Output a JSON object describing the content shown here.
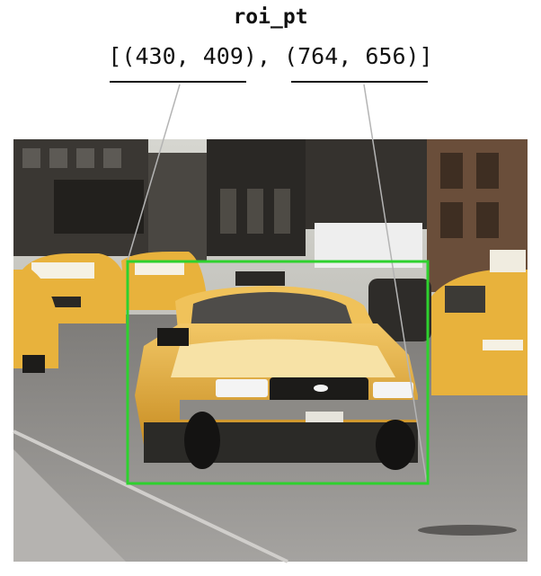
{
  "title": "roi_pt",
  "coordinates_text": "[(430, 409), (764, 656)]",
  "roi": {
    "top_left": [
      430,
      409
    ],
    "bottom_right": [
      764,
      656
    ],
    "box_color": "#2ed12e"
  },
  "leader_line_color": "#b4b4b4",
  "photo": {
    "subject": "yellow taxi cab on city street",
    "sky_color": "#c9c9c3",
    "road_color": "#8f8d8a",
    "taxi_color": "#e8b23c"
  }
}
